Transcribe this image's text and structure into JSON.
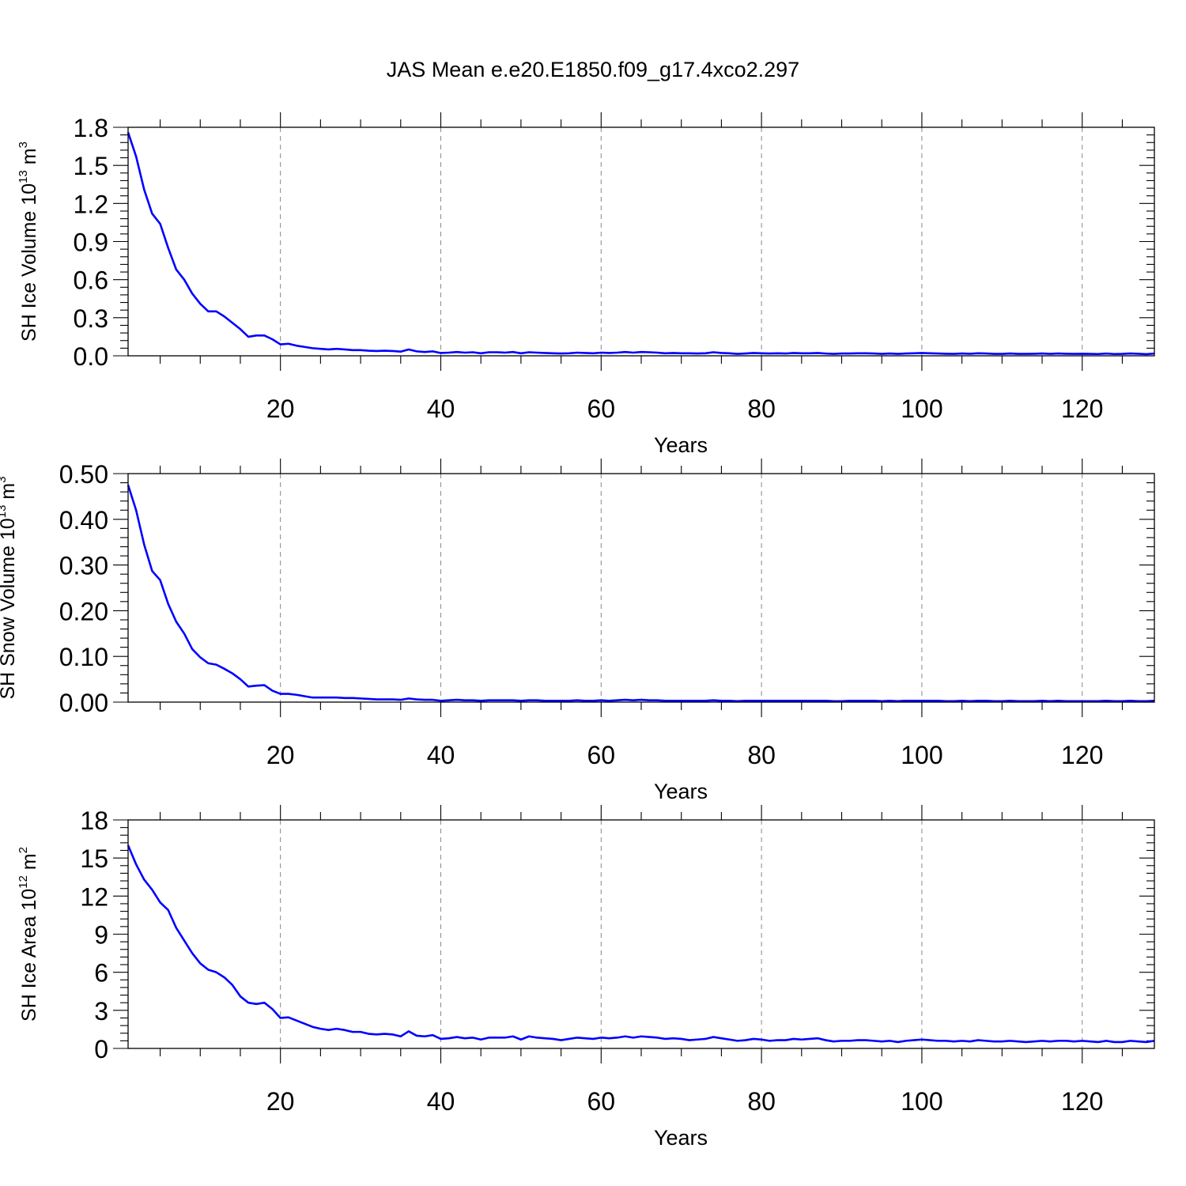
{
  "figure_title": "JAS Mean e.e20.E1850.f09_g17.4xco2.297",
  "colors": {
    "series": "#0000ff",
    "grid": "#888888",
    "axes": "#000000"
  },
  "chart_data": [
    {
      "type": "line",
      "ylabel": {
        "main": "SH Ice Volume 10",
        "exp": "13",
        "unit": " m",
        "unit_exp": "3"
      },
      "xlabel": "Years",
      "xlim": [
        1,
        129
      ],
      "ylim": [
        0,
        1.8
      ],
      "xticks": [
        20,
        40,
        60,
        80,
        100,
        120
      ],
      "yticks": [
        0,
        0.3,
        0.6,
        0.9,
        1.2,
        1.5,
        1.8
      ],
      "ytick_labels": [
        "0.0",
        "0.3",
        "0.6",
        "0.9",
        "1.2",
        "1.5",
        "1.8"
      ],
      "y_minor_step": 0.06,
      "x_minor_step": 5,
      "grid": "vertical dashed at major x ticks",
      "series": [
        {
          "values": [
            1.76,
            1.57,
            1.31,
            1.12,
            1.04,
            0.85,
            0.68,
            0.6,
            0.49,
            0.41,
            0.35,
            0.35,
            0.31,
            0.26,
            0.21,
            0.15,
            0.16,
            0.16,
            0.13,
            0.09,
            0.095,
            0.08,
            0.07,
            0.06,
            0.055,
            0.05,
            0.055,
            0.05,
            0.045,
            0.045,
            0.04,
            0.038,
            0.04,
            0.038,
            0.033,
            0.05,
            0.035,
            0.03,
            0.035,
            0.022,
            0.025,
            0.03,
            0.025,
            0.028,
            0.02,
            0.028,
            0.028,
            0.025,
            0.03,
            0.02,
            0.028,
            0.025,
            0.022,
            0.02,
            0.018,
            0.02,
            0.025,
            0.022,
            0.02,
            0.025,
            0.022,
            0.025,
            0.03,
            0.025,
            0.03,
            0.028,
            0.025,
            0.02,
            0.022,
            0.02,
            0.02,
            0.018,
            0.02,
            0.028,
            0.022,
            0.02,
            0.015,
            0.018,
            0.022,
            0.02,
            0.018,
            0.02,
            0.018,
            0.022,
            0.02,
            0.02,
            0.022,
            0.018,
            0.015,
            0.018,
            0.018,
            0.02,
            0.02,
            0.018,
            0.015,
            0.018,
            0.015,
            0.018,
            0.02,
            0.022,
            0.02,
            0.018,
            0.016,
            0.015,
            0.018,
            0.016,
            0.02,
            0.018,
            0.015,
            0.015,
            0.018,
            0.015,
            0.015,
            0.016,
            0.018,
            0.015,
            0.018,
            0.016,
            0.015,
            0.016,
            0.015,
            0.014,
            0.018,
            0.014,
            0.015,
            0.018,
            0.016,
            0.013,
            0.018
          ]
        }
      ]
    },
    {
      "type": "line",
      "ylabel": {
        "main": "SH Snow Volume 10",
        "exp": "13",
        "unit": " m",
        "unit_exp": "3"
      },
      "xlabel": "Years",
      "xlim": [
        1,
        129
      ],
      "ylim": [
        0,
        0.5
      ],
      "xticks": [
        20,
        40,
        60,
        80,
        100,
        120
      ],
      "yticks": [
        0,
        0.1,
        0.2,
        0.3,
        0.4,
        0.5
      ],
      "ytick_labels": [
        "0.00",
        "0.10",
        "0.20",
        "0.30",
        "0.40",
        "0.50"
      ],
      "y_minor_step": 0.02,
      "x_minor_step": 5,
      "grid": "vertical dashed at major x ticks",
      "series": [
        {
          "values": [
            0.475,
            0.42,
            0.345,
            0.287,
            0.267,
            0.215,
            0.176,
            0.15,
            0.116,
            0.098,
            0.085,
            0.082,
            0.073,
            0.063,
            0.05,
            0.034,
            0.036,
            0.037,
            0.025,
            0.018,
            0.018,
            0.016,
            0.013,
            0.01,
            0.01,
            0.01,
            0.01,
            0.009,
            0.009,
            0.008,
            0.007,
            0.006,
            0.006,
            0.006,
            0.005,
            0.008,
            0.006,
            0.005,
            0.005,
            0.003,
            0.004,
            0.005,
            0.004,
            0.004,
            0.003,
            0.004,
            0.004,
            0.004,
            0.004,
            0.003,
            0.004,
            0.004,
            0.003,
            0.003,
            0.003,
            0.003,
            0.004,
            0.003,
            0.003,
            0.004,
            0.003,
            0.004,
            0.005,
            0.004,
            0.005,
            0.004,
            0.004,
            0.003,
            0.003,
            0.003,
            0.003,
            0.003,
            0.003,
            0.004,
            0.003,
            0.003,
            0.002,
            0.003,
            0.003,
            0.003,
            0.003,
            0.003,
            0.003,
            0.003,
            0.003,
            0.003,
            0.003,
            0.003,
            0.002,
            0.002,
            0.003,
            0.003,
            0.003,
            0.003,
            0.002,
            0.003,
            0.002,
            0.003,
            0.003,
            0.003,
            0.003,
            0.003,
            0.002,
            0.002,
            0.003,
            0.002,
            0.003,
            0.003,
            0.002,
            0.002,
            0.003,
            0.002,
            0.002,
            0.002,
            0.003,
            0.002,
            0.003,
            0.002,
            0.002,
            0.002,
            0.002,
            0.002,
            0.003,
            0.002,
            0.002,
            0.003,
            0.002,
            0.002,
            0.003
          ]
        }
      ]
    },
    {
      "type": "line",
      "ylabel": {
        "main": "SH Ice Area 10",
        "exp": "12",
        "unit": " m",
        "unit_exp": "2"
      },
      "xlabel": "Years",
      "xlim": [
        1,
        129
      ],
      "ylim": [
        0,
        18
      ],
      "xticks": [
        20,
        40,
        60,
        80,
        100,
        120
      ],
      "yticks": [
        0,
        3,
        6,
        9,
        12,
        15,
        18
      ],
      "ytick_labels": [
        "0",
        "3",
        "6",
        "9",
        "12",
        "15",
        "18"
      ],
      "y_minor_step": 0.6,
      "x_minor_step": 5,
      "grid": "vertical dashed at major x ticks",
      "series": [
        {
          "values": [
            16.0,
            14.5,
            13.3,
            12.5,
            11.5,
            10.9,
            9.5,
            8.5,
            7.5,
            6.7,
            6.2,
            6.0,
            5.6,
            5.0,
            4.1,
            3.6,
            3.5,
            3.6,
            3.1,
            2.4,
            2.45,
            2.2,
            1.95,
            1.7,
            1.55,
            1.45,
            1.55,
            1.45,
            1.3,
            1.3,
            1.15,
            1.1,
            1.15,
            1.1,
            0.95,
            1.35,
            1.0,
            0.95,
            1.05,
            0.75,
            0.8,
            0.9,
            0.8,
            0.85,
            0.7,
            0.85,
            0.85,
            0.85,
            0.95,
            0.7,
            0.95,
            0.85,
            0.8,
            0.75,
            0.65,
            0.75,
            0.85,
            0.8,
            0.75,
            0.85,
            0.8,
            0.85,
            0.95,
            0.85,
            0.95,
            0.9,
            0.85,
            0.75,
            0.8,
            0.75,
            0.65,
            0.7,
            0.75,
            0.9,
            0.8,
            0.7,
            0.6,
            0.65,
            0.75,
            0.7,
            0.6,
            0.65,
            0.65,
            0.75,
            0.7,
            0.75,
            0.8,
            0.65,
            0.55,
            0.6,
            0.6,
            0.65,
            0.65,
            0.6,
            0.55,
            0.6,
            0.5,
            0.6,
            0.65,
            0.7,
            0.65,
            0.6,
            0.6,
            0.55,
            0.6,
            0.55,
            0.65,
            0.6,
            0.55,
            0.55,
            0.6,
            0.55,
            0.5,
            0.55,
            0.6,
            0.55,
            0.6,
            0.6,
            0.55,
            0.6,
            0.55,
            0.5,
            0.6,
            0.5,
            0.5,
            0.6,
            0.55,
            0.5,
            0.6
          ]
        }
      ]
    }
  ]
}
